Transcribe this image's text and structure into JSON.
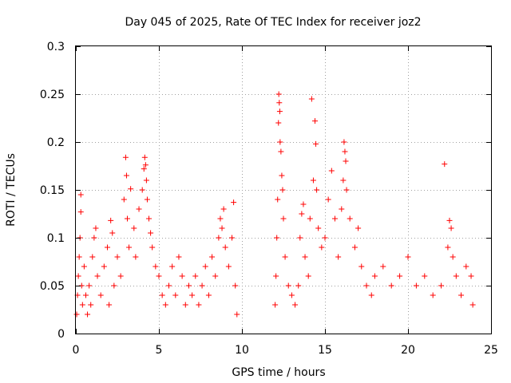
{
  "chart_data": {
    "type": "scatter",
    "title": "Day 045 of 2025, Rate Of TEC Index for receiver joz2",
    "xlabel": "GPS time / hours",
    "ylabel": "ROTI / TECUs",
    "xlim": [
      0,
      25
    ],
    "ylim": [
      0,
      0.3
    ],
    "xticks": [
      0,
      5,
      10,
      15,
      20,
      25
    ],
    "yticks": [
      0,
      0.05,
      0.1,
      0.15,
      0.2,
      0.25,
      0.3
    ],
    "xtick_labels": [
      "0",
      "5",
      "10",
      "15",
      "20",
      "25"
    ],
    "ytick_labels": [
      "0",
      "0.05",
      "0.1",
      "0.15",
      "0.2",
      "0.25",
      "0.3"
    ],
    "grid": true,
    "marker": "plus",
    "color": "#ff0000",
    "series": [
      {
        "name": "ROTI",
        "points": [
          [
            0.05,
            0.02
          ],
          [
            0.1,
            0.04
          ],
          [
            0.15,
            0.06
          ],
          [
            0.2,
            0.08
          ],
          [
            0.25,
            0.1
          ],
          [
            0.3,
            0.145
          ],
          [
            0.3,
            0.127
          ],
          [
            0.35,
            0.05
          ],
          [
            0.4,
            0.03
          ],
          [
            0.5,
            0.07
          ],
          [
            0.6,
            0.04
          ],
          [
            0.7,
            0.02
          ],
          [
            0.8,
            0.05
          ],
          [
            0.9,
            0.03
          ],
          [
            1.0,
            0.08
          ],
          [
            1.1,
            0.1
          ],
          [
            1.2,
            0.11
          ],
          [
            1.3,
            0.06
          ],
          [
            1.5,
            0.04
          ],
          [
            1.7,
            0.07
          ],
          [
            1.9,
            0.09
          ],
          [
            2.0,
            0.03
          ],
          [
            2.1,
            0.118
          ],
          [
            2.2,
            0.105
          ],
          [
            2.3,
            0.05
          ],
          [
            2.5,
            0.08
          ],
          [
            2.7,
            0.06
          ],
          [
            2.9,
            0.14
          ],
          [
            3.0,
            0.184
          ],
          [
            3.05,
            0.165
          ],
          [
            3.1,
            0.12
          ],
          [
            3.2,
            0.09
          ],
          [
            3.3,
            0.151
          ],
          [
            3.5,
            0.11
          ],
          [
            3.6,
            0.08
          ],
          [
            3.8,
            0.13
          ],
          [
            4.0,
            0.15
          ],
          [
            4.1,
            0.172
          ],
          [
            4.15,
            0.184
          ],
          [
            4.2,
            0.176
          ],
          [
            4.25,
            0.16
          ],
          [
            4.3,
            0.14
          ],
          [
            4.4,
            0.12
          ],
          [
            4.5,
            0.105
          ],
          [
            4.6,
            0.09
          ],
          [
            4.8,
            0.07
          ],
          [
            5.0,
            0.06
          ],
          [
            5.2,
            0.04
          ],
          [
            5.4,
            0.03
          ],
          [
            5.6,
            0.05
          ],
          [
            5.8,
            0.07
          ],
          [
            6.0,
            0.04
          ],
          [
            6.2,
            0.08
          ],
          [
            6.4,
            0.06
          ],
          [
            6.6,
            0.03
          ],
          [
            6.8,
            0.05
          ],
          [
            7.0,
            0.04
          ],
          [
            7.2,
            0.06
          ],
          [
            7.4,
            0.03
          ],
          [
            7.6,
            0.05
          ],
          [
            7.8,
            0.07
          ],
          [
            8.0,
            0.04
          ],
          [
            8.2,
            0.08
          ],
          [
            8.4,
            0.06
          ],
          [
            8.6,
            0.1
          ],
          [
            8.7,
            0.12
          ],
          [
            8.8,
            0.11
          ],
          [
            8.9,
            0.13
          ],
          [
            9.0,
            0.09
          ],
          [
            9.2,
            0.07
          ],
          [
            9.4,
            0.1
          ],
          [
            9.5,
            0.137
          ],
          [
            9.6,
            0.05
          ],
          [
            9.7,
            0.02
          ],
          [
            12.0,
            0.03
          ],
          [
            12.05,
            0.06
          ],
          [
            12.1,
            0.1
          ],
          [
            12.15,
            0.14
          ],
          [
            12.2,
            0.22
          ],
          [
            12.22,
            0.25
          ],
          [
            12.25,
            0.241
          ],
          [
            12.28,
            0.232
          ],
          [
            12.3,
            0.2
          ],
          [
            12.35,
            0.19
          ],
          [
            12.4,
            0.165
          ],
          [
            12.45,
            0.15
          ],
          [
            12.5,
            0.12
          ],
          [
            12.6,
            0.08
          ],
          [
            12.8,
            0.05
          ],
          [
            13.0,
            0.04
          ],
          [
            13.2,
            0.03
          ],
          [
            13.4,
            0.05
          ],
          [
            13.5,
            0.1
          ],
          [
            13.6,
            0.125
          ],
          [
            13.7,
            0.135
          ],
          [
            13.8,
            0.08
          ],
          [
            14.0,
            0.06
          ],
          [
            14.1,
            0.12
          ],
          [
            14.2,
            0.245
          ],
          [
            14.3,
            0.16
          ],
          [
            14.4,
            0.222
          ],
          [
            14.45,
            0.198
          ],
          [
            14.5,
            0.15
          ],
          [
            14.6,
            0.11
          ],
          [
            14.8,
            0.09
          ],
          [
            15.0,
            0.1
          ],
          [
            15.2,
            0.14
          ],
          [
            15.4,
            0.17
          ],
          [
            15.6,
            0.12
          ],
          [
            15.8,
            0.08
          ],
          [
            16.0,
            0.13
          ],
          [
            16.1,
            0.16
          ],
          [
            16.15,
            0.2
          ],
          [
            16.2,
            0.19
          ],
          [
            16.25,
            0.18
          ],
          [
            16.3,
            0.15
          ],
          [
            16.5,
            0.12
          ],
          [
            16.8,
            0.09
          ],
          [
            17.0,
            0.11
          ],
          [
            17.2,
            0.07
          ],
          [
            17.5,
            0.05
          ],
          [
            17.8,
            0.04
          ],
          [
            18.0,
            0.06
          ],
          [
            18.5,
            0.07
          ],
          [
            19.0,
            0.05
          ],
          [
            19.5,
            0.06
          ],
          [
            20.0,
            0.08
          ],
          [
            20.5,
            0.05
          ],
          [
            21.0,
            0.06
          ],
          [
            21.5,
            0.04
          ],
          [
            22.0,
            0.05
          ],
          [
            22.2,
            0.177
          ],
          [
            22.4,
            0.09
          ],
          [
            22.5,
            0.118
          ],
          [
            22.6,
            0.11
          ],
          [
            22.7,
            0.08
          ],
          [
            22.9,
            0.06
          ],
          [
            23.2,
            0.04
          ],
          [
            23.5,
            0.07
          ],
          [
            23.8,
            0.06
          ],
          [
            23.9,
            0.03
          ]
        ]
      }
    ]
  }
}
